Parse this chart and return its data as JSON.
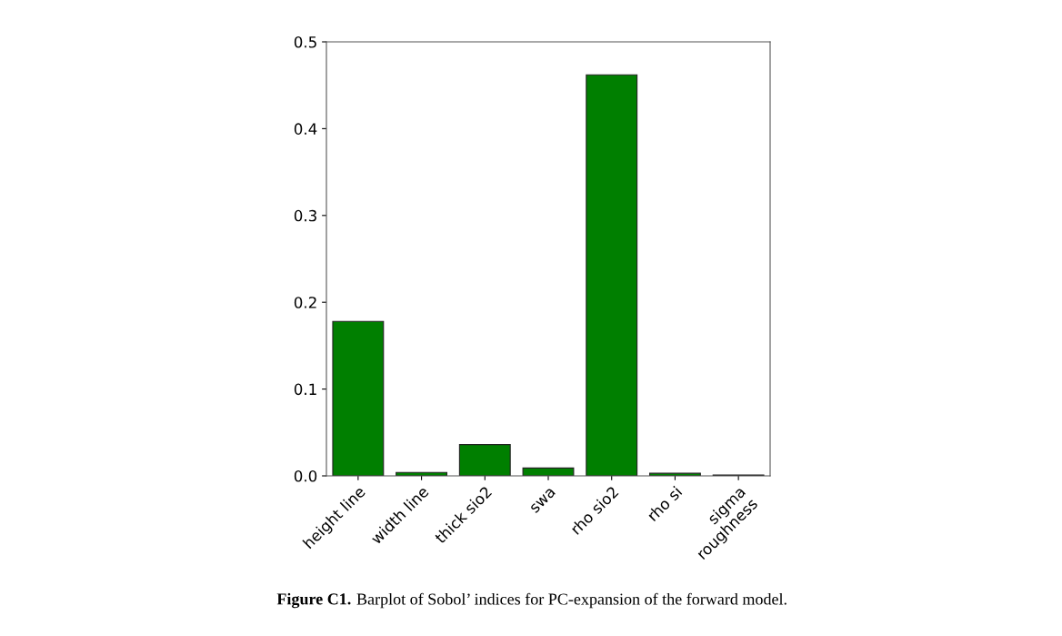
{
  "chart_data": {
    "type": "bar",
    "categories": [
      "height line",
      "width line",
      "thick sio2",
      "swa",
      "rho sio2",
      "rho si",
      "sigma\nroughness"
    ],
    "values": [
      0.178,
      0.004,
      0.036,
      0.009,
      0.462,
      0.003,
      0.001
    ],
    "color": "#007f00",
    "ylim": [
      0,
      0.5
    ],
    "yticks": [
      {
        "value": 0,
        "label": "0.0"
      },
      0.1,
      0.2,
      0.3,
      0.4,
      0.5
    ],
    "grid": false,
    "annotations": [
      "Figure C1.",
      "Barplot of Sobol’ indices for PC-expansion of the forward model."
    ]
  }
}
